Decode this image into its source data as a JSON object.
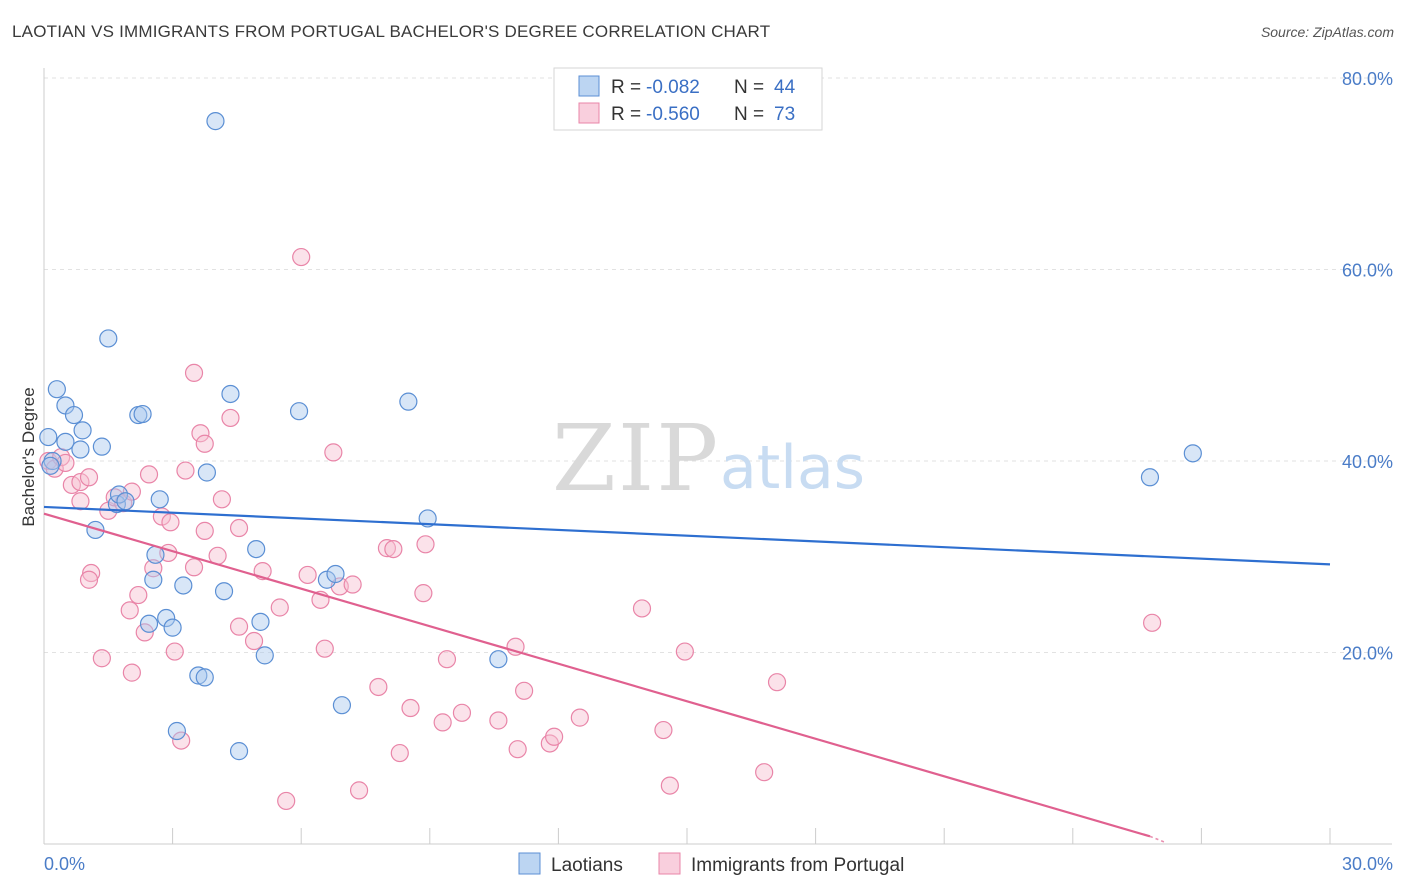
{
  "header": {
    "title": "LAOTIAN VS IMMIGRANTS FROM PORTUGAL BACHELOR'S DEGREE CORRELATION CHART",
    "source": "Source: ZipAtlas.com"
  },
  "watermark": {
    "zip": "ZIP",
    "atlas": "atlas"
  },
  "colors": {
    "laotian_fill": "#a9c8ee",
    "laotian_stroke": "#5b8fd4",
    "laotian_line": "#2e6fd0",
    "portugal_fill": "#f6bfd1",
    "portugal_stroke": "#e985a8",
    "portugal_line": "#e0608f",
    "axis_text": "#4a7cc7",
    "grid": "#e2e2e2"
  },
  "legend_box": {
    "row1": {
      "r_label": "R = ",
      "r_value": "-0.082",
      "n_label": "N = ",
      "n_value": "44"
    },
    "row2": {
      "r_label": "R = ",
      "r_value": "-0.560",
      "n_label": "N = ",
      "n_value": "73"
    }
  },
  "chart_data": {
    "type": "scatter",
    "title": "LAOTIAN VS IMMIGRANTS FROM PORTUGAL BACHELOR'S DEGREE CORRELATION CHART",
    "xlabel": "",
    "ylabel": "Bachelor's Degree",
    "xlim": [
      0,
      30
    ],
    "ylim": [
      0,
      80
    ],
    "x_tick_labels": [
      "0.0%",
      "30.0%"
    ],
    "y_ticks": [
      20,
      40,
      60,
      80
    ],
    "y_tick_labels": [
      "20.0%",
      "40.0%",
      "60.0%",
      "80.0%"
    ],
    "legend": [
      "Laotians",
      "Immigrants from Portugal"
    ],
    "series": [
      {
        "name": "Laotians",
        "r": -0.082,
        "n": 44,
        "trend": {
          "x": [
            0,
            30
          ],
          "y": [
            35.2,
            29.2
          ]
        },
        "points": [
          [
            0.1,
            42.5
          ],
          [
            0.2,
            40.0
          ],
          [
            0.3,
            47.5
          ],
          [
            0.5,
            45.8
          ],
          [
            0.7,
            44.8
          ],
          [
            0.5,
            42.0
          ],
          [
            0.9,
            43.2
          ],
          [
            0.85,
            41.2
          ],
          [
            1.35,
            41.5
          ],
          [
            1.2,
            32.8
          ],
          [
            1.5,
            52.8
          ],
          [
            1.7,
            35.5
          ],
          [
            1.75,
            36.5
          ],
          [
            1.9,
            35.8
          ],
          [
            2.2,
            44.8
          ],
          [
            2.3,
            44.9
          ],
          [
            2.7,
            36.0
          ],
          [
            2.55,
            27.6
          ],
          [
            2.85,
            23.6
          ],
          [
            2.45,
            23.0
          ],
          [
            2.6,
            30.2
          ],
          [
            3.0,
            22.6
          ],
          [
            3.25,
            27.0
          ],
          [
            3.6,
            17.6
          ],
          [
            3.75,
            17.4
          ],
          [
            3.1,
            11.8
          ],
          [
            3.8,
            38.8
          ],
          [
            4.2,
            26.4
          ],
          [
            4.35,
            47.0
          ],
          [
            4.55,
            9.7
          ],
          [
            4.95,
            30.8
          ],
          [
            5.05,
            23.2
          ],
          [
            5.15,
            19.7
          ],
          [
            5.95,
            45.2
          ],
          [
            6.6,
            27.6
          ],
          [
            6.8,
            28.2
          ],
          [
            6.95,
            14.5
          ],
          [
            8.5,
            46.2
          ],
          [
            8.95,
            34.0
          ],
          [
            10.6,
            19.3
          ],
          [
            4.0,
            75.5
          ],
          [
            25.8,
            38.3
          ],
          [
            26.8,
            40.8
          ],
          [
            0.15,
            39.5
          ]
        ]
      },
      {
        "name": "Immigrants from Portugal",
        "r": -0.56,
        "n": 73,
        "trend": {
          "x": [
            0,
            25.8
          ],
          "y": [
            34.5,
            0.8
          ]
        },
        "trend_dashed_to": {
          "x": 25.4,
          "y": 0.4
        },
        "points": [
          [
            0.1,
            40.0
          ],
          [
            0.25,
            39.2
          ],
          [
            0.4,
            40.4
          ],
          [
            0.5,
            39.8
          ],
          [
            0.65,
            37.5
          ],
          [
            0.85,
            37.8
          ],
          [
            0.85,
            35.8
          ],
          [
            1.05,
            38.3
          ],
          [
            1.5,
            34.8
          ],
          [
            1.65,
            36.2
          ],
          [
            1.85,
            35.6
          ],
          [
            2.05,
            36.8
          ],
          [
            1.1,
            28.3
          ],
          [
            1.05,
            27.6
          ],
          [
            1.35,
            19.4
          ],
          [
            2.0,
            24.4
          ],
          [
            2.2,
            26.0
          ],
          [
            2.05,
            17.9
          ],
          [
            2.35,
            22.1
          ],
          [
            2.45,
            38.6
          ],
          [
            2.55,
            28.8
          ],
          [
            2.75,
            34.2
          ],
          [
            2.9,
            30.4
          ],
          [
            2.95,
            33.6
          ],
          [
            3.05,
            20.1
          ],
          [
            3.3,
            39.0
          ],
          [
            3.5,
            28.9
          ],
          [
            3.2,
            10.8
          ],
          [
            3.5,
            49.2
          ],
          [
            3.65,
            42.9
          ],
          [
            3.75,
            32.7
          ],
          [
            3.75,
            41.8
          ],
          [
            4.05,
            30.1
          ],
          [
            4.15,
            36.0
          ],
          [
            4.35,
            44.5
          ],
          [
            4.55,
            33.0
          ],
          [
            4.55,
            22.7
          ],
          [
            4.9,
            21.2
          ],
          [
            5.1,
            28.5
          ],
          [
            5.5,
            24.7
          ],
          [
            5.65,
            4.5
          ],
          [
            6.0,
            61.3
          ],
          [
            6.15,
            28.1
          ],
          [
            6.45,
            25.5
          ],
          [
            6.55,
            20.4
          ],
          [
            6.75,
            40.9
          ],
          [
            6.9,
            26.9
          ],
          [
            7.2,
            27.1
          ],
          [
            7.35,
            5.6
          ],
          [
            7.8,
            16.4
          ],
          [
            8.0,
            30.9
          ],
          [
            8.15,
            30.8
          ],
          [
            8.3,
            9.5
          ],
          [
            8.55,
            14.2
          ],
          [
            8.85,
            26.2
          ],
          [
            8.9,
            31.3
          ],
          [
            9.3,
            12.7
          ],
          [
            9.4,
            19.3
          ],
          [
            9.75,
            13.7
          ],
          [
            10.6,
            12.9
          ],
          [
            11.0,
            20.6
          ],
          [
            11.05,
            9.9
          ],
          [
            11.2,
            16.0
          ],
          [
            11.8,
            10.5
          ],
          [
            11.9,
            11.2
          ],
          [
            12.5,
            13.2
          ],
          [
            13.95,
            24.6
          ],
          [
            14.45,
            11.9
          ],
          [
            14.6,
            6.1
          ],
          [
            14.95,
            20.1
          ],
          [
            16.8,
            7.5
          ],
          [
            17.1,
            16.9
          ],
          [
            25.85,
            23.1
          ]
        ]
      }
    ]
  }
}
